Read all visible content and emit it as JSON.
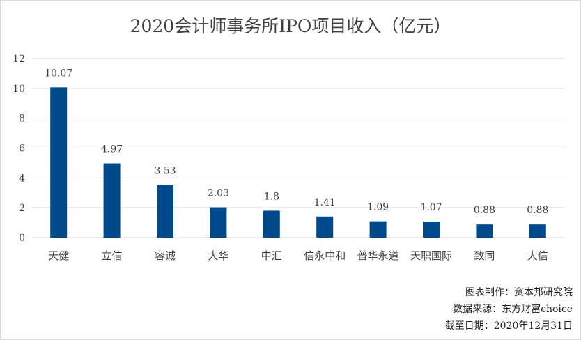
{
  "chart_data": {
    "type": "bar",
    "title": "2020会计师事务所IPO项目收入（亿元）",
    "categories": [
      "天健",
      "立信",
      "容诚",
      "大华",
      "中汇",
      "信永中和",
      "普华永道",
      "天职国际",
      "致同",
      "大信"
    ],
    "values": [
      10.07,
      4.97,
      3.53,
      2.03,
      1.8,
      1.41,
      1.09,
      1.07,
      0.88,
      0.88
    ],
    "data_labels": [
      "10.07",
      "4.97",
      "3.53",
      "2.03",
      "1.8",
      "1.41",
      "1.09",
      "1.07",
      "0.88",
      "0.88"
    ],
    "yticks": [
      "0",
      "2",
      "4",
      "6",
      "8",
      "10",
      "12"
    ],
    "ylim": [
      0,
      12
    ],
    "grid": true,
    "legend": "none",
    "bar_color": "#004a8c"
  },
  "notes": {
    "maker": "图表制作：资本邦研究院",
    "source": "数据来源：东方财富choice",
    "date": "截至日期：2020年12月31日"
  }
}
